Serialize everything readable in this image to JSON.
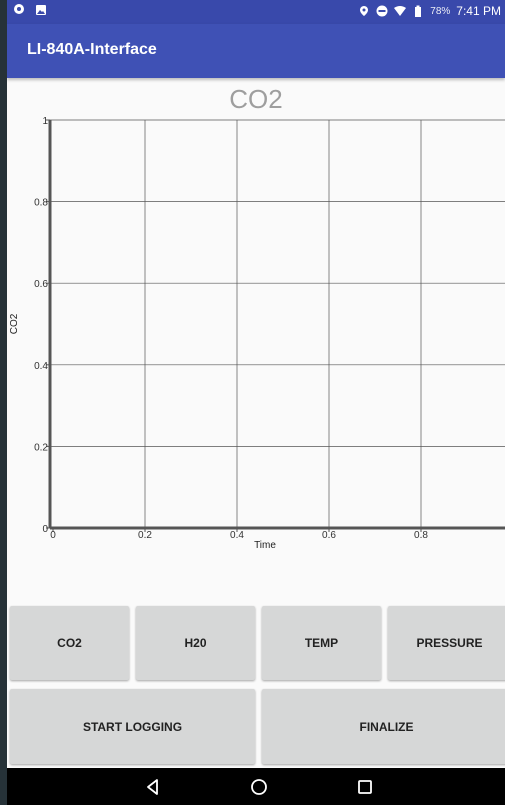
{
  "status_bar": {
    "battery": "78%",
    "time": "7:41 PM",
    "icons": [
      "chat-icon",
      "image-icon",
      "location-icon",
      "dnd-icon",
      "wifi-icon",
      "battery-icon"
    ]
  },
  "app_bar": {
    "title": "LI-840A-Interface"
  },
  "chart_data": {
    "type": "line",
    "title": "CO2",
    "xlabel": "Time",
    "ylabel": "CO2",
    "xlim": [
      0,
      1
    ],
    "ylim": [
      0,
      1
    ],
    "x_ticks": [
      "0",
      "0.2",
      "0.4",
      "0.6",
      "0.8"
    ],
    "y_ticks": [
      "0",
      "0.2",
      "0.4",
      "0.6",
      "0.8",
      "1"
    ],
    "grid": true,
    "series": []
  },
  "buttons": {
    "co2": "CO2",
    "h2o": "H20",
    "temp": "TEMP",
    "pressure": "PRESSURE",
    "start_logging": "START LOGGING",
    "finalize": "FINALIZE"
  },
  "nav_bar": {
    "icons": [
      "back-icon",
      "home-icon",
      "recents-icon"
    ]
  }
}
